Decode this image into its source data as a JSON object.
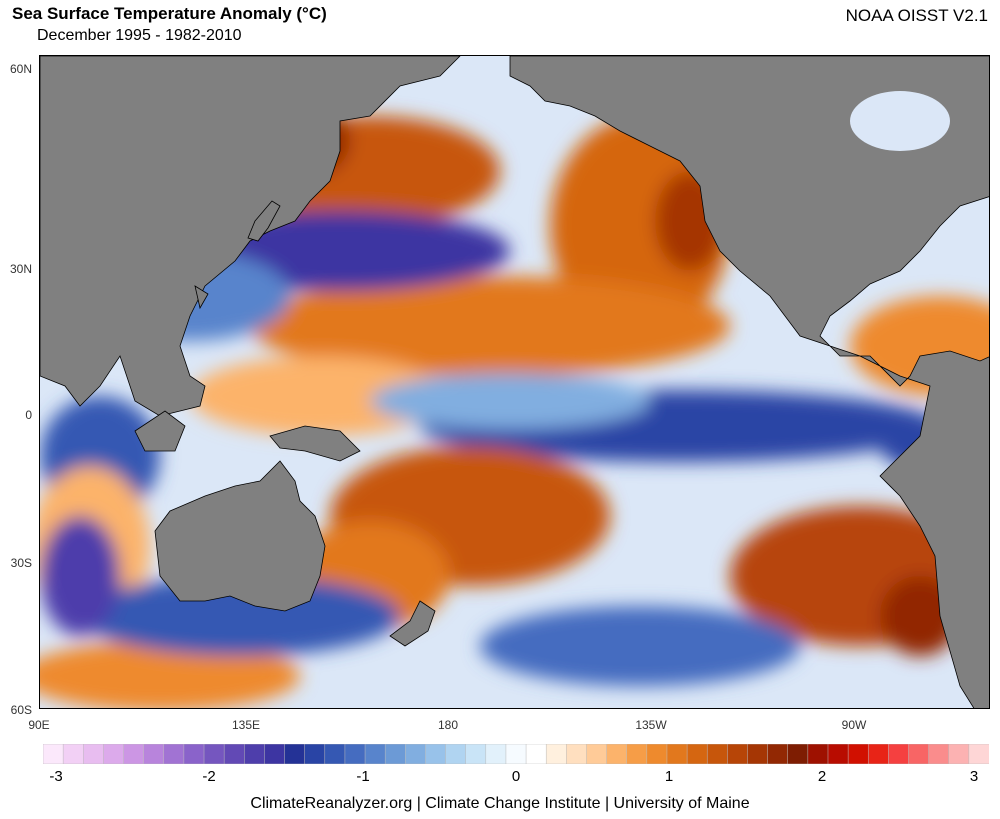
{
  "header": {
    "title": "Sea Surface Temperature Anomaly (°C)",
    "subtitle": "December 1995 - 1982-2010",
    "source": "NOAA OISST V2.1"
  },
  "axes": {
    "lat_labels": [
      "60N",
      "30N",
      "0",
      "30S",
      "60S"
    ],
    "lon_labels": [
      "90E",
      "135E",
      "180",
      "135W",
      "90W"
    ]
  },
  "colorbar": {
    "tick_labels": [
      "-3",
      "-2",
      "-1",
      "0",
      "1",
      "2",
      "3"
    ],
    "colors": [
      "#fbe8fb",
      "#f2d0f5",
      "#e8bdf0",
      "#dcaaeb",
      "#cc96e4",
      "#b884dc",
      "#a173d3",
      "#8a63ca",
      "#7556bf",
      "#6249b5",
      "#4e3eab",
      "#3d35a2",
      "#243296",
      "#2944a5",
      "#3558b3",
      "#456cc0",
      "#5884cc",
      "#6c9ad6",
      "#81aee0",
      "#98c2ea",
      "#b0d4f1",
      "#c9e4f7",
      "#e2f1fb",
      "#f6fbff",
      "#ffffff",
      "#fff0de",
      "#ffdfbf",
      "#ffcb98",
      "#fcb36b",
      "#f69d47",
      "#ee8a2d",
      "#e2781d",
      "#d56611",
      "#c7560b",
      "#b74507",
      "#a53604",
      "#922803",
      "#7e1d02",
      "#9e1100",
      "#b80c00",
      "#d11000",
      "#e82417",
      "#f54040",
      "#f86565",
      "#fa8c8c",
      "#fcb2b2",
      "#fed6d6"
    ]
  },
  "footer": "ClimateReanalyzer.org | Climate Change Institute | University of Maine"
}
